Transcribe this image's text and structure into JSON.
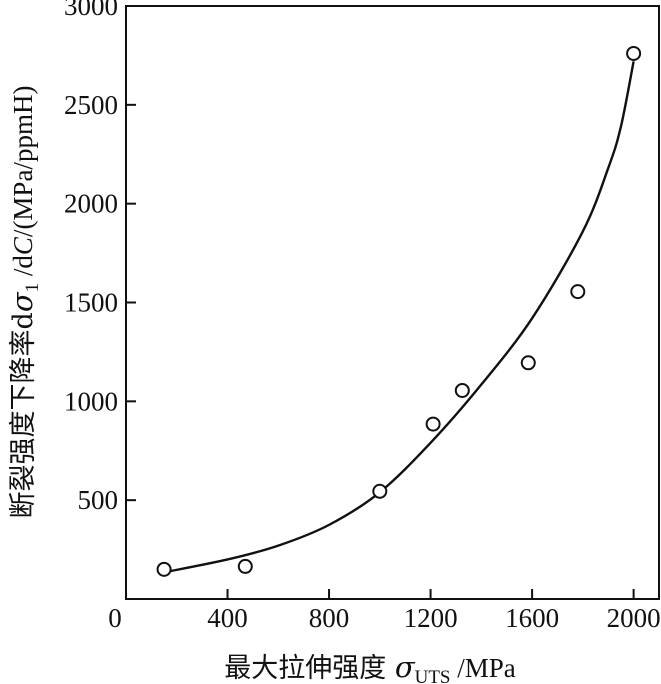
{
  "chart_data": {
    "type": "scatter",
    "xlabel": {
      "prefix": "最大拉伸强度 ",
      "symbol": "σ",
      "subscript": "UTS",
      "suffix": " /MPa"
    },
    "ylabel": {
      "prefix": "断裂强度下降率d",
      "symbol": "σ",
      "subscript": "1",
      "middle": " /d",
      "italic": "C",
      "suffix": "/(MPa/ppmH)"
    },
    "xlim": [
      0,
      2100
    ],
    "ylim": [
      0,
      3000
    ],
    "xticks": [
      0,
      400,
      800,
      1200,
      1600,
      2000
    ],
    "yticks": [
      500,
      1000,
      1500,
      2000,
      2500,
      3000
    ],
    "xtick_labels": [
      "0",
      "400",
      "800",
      "1200",
      "1600",
      "2000"
    ],
    "ytick_labels": [
      "500",
      "1000",
      "1500",
      "2000",
      "2500",
      "3000"
    ],
    "grid": false,
    "series": [
      {
        "kind": "markers",
        "marker": "open-circle",
        "points": [
          {
            "x": 150,
            "y": 150
          },
          {
            "x": 470,
            "y": 165
          },
          {
            "x": 1000,
            "y": 545
          },
          {
            "x": 1210,
            "y": 885
          },
          {
            "x": 1325,
            "y": 1055
          },
          {
            "x": 1585,
            "y": 1195
          },
          {
            "x": 1780,
            "y": 1555
          },
          {
            "x": 2000,
            "y": 2760
          }
        ]
      },
      {
        "kind": "fit-curve",
        "points": [
          {
            "x": 150,
            "y": 135
          },
          {
            "x": 400,
            "y": 200
          },
          {
            "x": 600,
            "y": 270
          },
          {
            "x": 800,
            "y": 375
          },
          {
            "x": 1000,
            "y": 540
          },
          {
            "x": 1200,
            "y": 790
          },
          {
            "x": 1400,
            "y": 1085
          },
          {
            "x": 1600,
            "y": 1420
          },
          {
            "x": 1800,
            "y": 1860
          },
          {
            "x": 1900,
            "y": 2180
          },
          {
            "x": 1950,
            "y": 2390
          },
          {
            "x": 2000,
            "y": 2720
          }
        ]
      }
    ]
  }
}
